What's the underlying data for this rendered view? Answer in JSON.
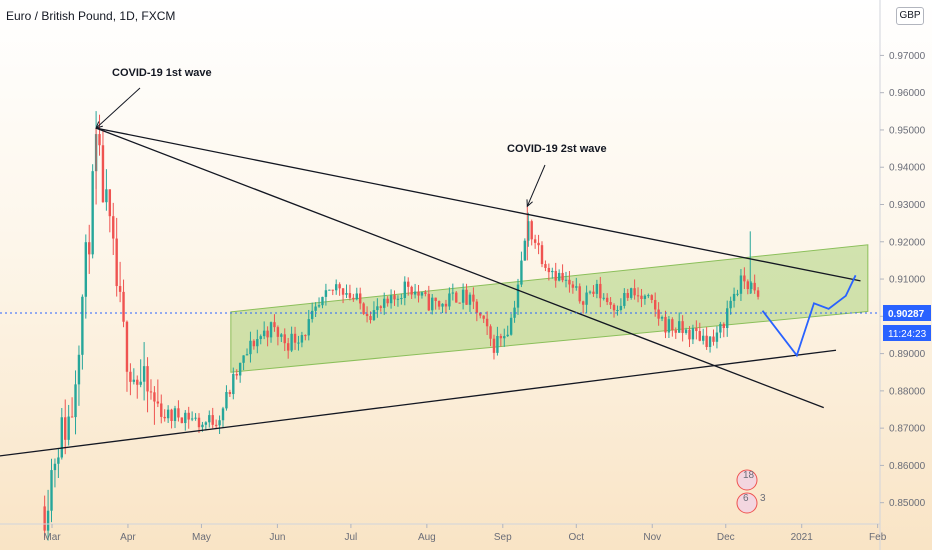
{
  "header": {
    "title": "Euro / British Pound, 1D, FXCM",
    "currency_badge": "GBP"
  },
  "colors": {
    "up": "#26a69a",
    "down": "#ef5350",
    "channel": "#9ccc65",
    "projection": "#2962ff",
    "price_tag": "#2962ff",
    "trendline": "#131722"
  },
  "chart_data": {
    "type": "candlestick",
    "symbol": "Euro / British Pound",
    "timeframe": "1D",
    "source": "FXCM",
    "y_axis_ticks": [
      "0.97000",
      "0.96000",
      "0.95000",
      "0.94000",
      "0.93000",
      "0.92000",
      "0.91000",
      "0.90000",
      "0.89000",
      "0.88000",
      "0.87000",
      "0.86000",
      "0.85000"
    ],
    "x_axis_ticks": [
      "Mar",
      "Apr",
      "May",
      "Jun",
      "Jul",
      "Aug",
      "Sep",
      "Oct",
      "Nov",
      "Dec",
      "2021",
      "Feb"
    ],
    "ylim": [
      0.8475,
      0.9795
    ],
    "current_price": "0.90287",
    "countdown": "11:24:23",
    "price_path": [
      {
        "date": "2020-02-27",
        "price": 0.849
      },
      {
        "date": "2020-03-03",
        "price": 0.866
      },
      {
        "date": "2020-03-09",
        "price": 0.874
      },
      {
        "date": "2020-03-12",
        "price": 0.896
      },
      {
        "date": "2020-03-17",
        "price": 0.928
      },
      {
        "date": "2020-03-19",
        "price": 0.945
      },
      {
        "date": "2020-03-24",
        "price": 0.925
      },
      {
        "date": "2020-03-30",
        "price": 0.895
      },
      {
        "date": "2020-04-03",
        "price": 0.885
      },
      {
        "date": "2020-04-10",
        "price": 0.878
      },
      {
        "date": "2020-04-17",
        "price": 0.873
      },
      {
        "date": "2020-04-24",
        "price": 0.874
      },
      {
        "date": "2020-05-01",
        "price": 0.871
      },
      {
        "date": "2020-05-08",
        "price": 0.873
      },
      {
        "date": "2020-05-15",
        "price": 0.884
      },
      {
        "date": "2020-05-22",
        "price": 0.893
      },
      {
        "date": "2020-05-29",
        "price": 0.897
      },
      {
        "date": "2020-06-05",
        "price": 0.893
      },
      {
        "date": "2020-06-12",
        "price": 0.896
      },
      {
        "date": "2020-06-19",
        "price": 0.903
      },
      {
        "date": "2020-06-26",
        "price": 0.909
      },
      {
        "date": "2020-07-03",
        "price": 0.904
      },
      {
        "date": "2020-07-10",
        "price": 0.901
      },
      {
        "date": "2020-07-17",
        "price": 0.903
      },
      {
        "date": "2020-07-24",
        "price": 0.909
      },
      {
        "date": "2020-07-31",
        "price": 0.904
      },
      {
        "date": "2020-08-07",
        "price": 0.903
      },
      {
        "date": "2020-08-14",
        "price": 0.906
      },
      {
        "date": "2020-08-21",
        "price": 0.902
      },
      {
        "date": "2020-08-28",
        "price": 0.892
      },
      {
        "date": "2020-09-04",
        "price": 0.898
      },
      {
        "date": "2020-09-09",
        "price": 0.915
      },
      {
        "date": "2020-09-11",
        "price": 0.925
      },
      {
        "date": "2020-09-18",
        "price": 0.915
      },
      {
        "date": "2020-09-25",
        "price": 0.91
      },
      {
        "date": "2020-10-02",
        "price": 0.905
      },
      {
        "date": "2020-10-09",
        "price": 0.907
      },
      {
        "date": "2020-10-16",
        "price": 0.903
      },
      {
        "date": "2020-10-23",
        "price": 0.906
      },
      {
        "date": "2020-10-30",
        "price": 0.904
      },
      {
        "date": "2020-11-06",
        "price": 0.898
      },
      {
        "date": "2020-11-13",
        "price": 0.896
      },
      {
        "date": "2020-11-20",
        "price": 0.895
      },
      {
        "date": "2020-11-27",
        "price": 0.893
      },
      {
        "date": "2020-12-04",
        "price": 0.906
      },
      {
        "date": "2020-12-09",
        "price": 0.91
      },
      {
        "date": "2020-12-11",
        "price": 0.908
      },
      {
        "date": "2020-12-15",
        "price": 0.9029
      }
    ],
    "trendlines": [
      {
        "name": "upper-resistance",
        "from": {
          "date": "2020-03-19",
          "price": 0.9505
        },
        "to": {
          "date": "2021-01-25",
          "price": 0.9095
        }
      },
      {
        "name": "steep-descending",
        "from": {
          "date": "2020-03-19",
          "price": 0.9505
        },
        "to": {
          "date": "2021-01-10",
          "price": 0.8755
        }
      },
      {
        "name": "rising-support",
        "from": {
          "date": "2020-02-08",
          "price": 0.8625
        },
        "to": {
          "date": "2021-01-15",
          "price": 0.8909
        }
      }
    ],
    "channel": {
      "upper_start": {
        "date": "2020-05-13",
        "price": 0.9012
      },
      "upper_end": {
        "date": "2021-01-28",
        "price": 0.9192
      },
      "lower_start": {
        "date": "2020-05-13",
        "price": 0.885
      },
      "lower_end": {
        "date": "2021-01-28",
        "price": 0.9013
      }
    },
    "projection": [
      {
        "date": "2020-12-16",
        "price": 0.9015
      },
      {
        "date": "2020-12-30",
        "price": 0.8895
      },
      {
        "date": "2021-01-06",
        "price": 0.9035
      },
      {
        "date": "2021-01-12",
        "price": 0.902
      },
      {
        "date": "2021-01-19",
        "price": 0.9055
      },
      {
        "date": "2021-01-23",
        "price": 0.911
      }
    ],
    "annotations": [
      {
        "text": "COVID-19 1st wave",
        "arrow_to": {
          "date": "2020-03-19",
          "price": 0.9505
        }
      },
      {
        "text": "COVID-19 2st wave",
        "arrow_to": {
          "date": "2020-09-11",
          "price": 0.9295
        }
      }
    ],
    "events": [
      {
        "label": "18"
      },
      {
        "label": "6"
      },
      {
        "label": "3"
      }
    ]
  }
}
